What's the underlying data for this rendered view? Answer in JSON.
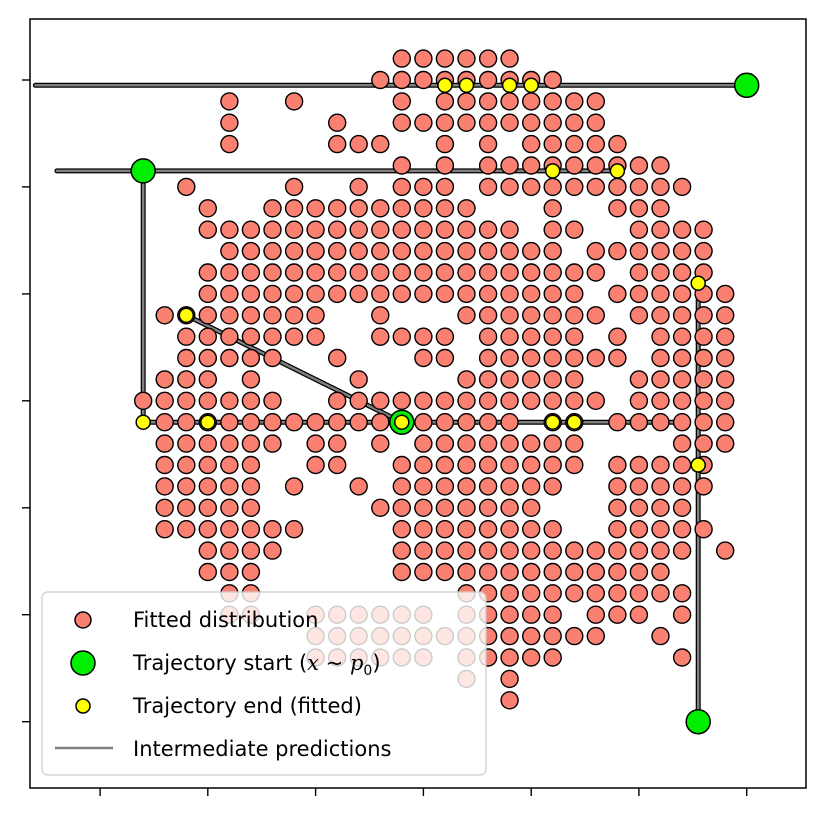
{
  "chart_data": {
    "type": "scatter",
    "title": "",
    "xlabel": "",
    "ylabel": "",
    "xlim": [
      -0.65,
      6.55
    ],
    "ylim": [
      -0.62,
      6.57
    ],
    "grid": false,
    "tick_labels_shown": false,
    "x_ticks": [
      0,
      1,
      2,
      3,
      4,
      5,
      6
    ],
    "y_ticks": [
      0,
      1,
      2,
      3,
      4,
      5,
      6
    ],
    "colors": {
      "fitted": "#fa8072",
      "start": "#00ee00",
      "end": "#ffff00",
      "path": "#808080",
      "edge": "#000000"
    },
    "legend": {
      "location": "lower-left",
      "entries": [
        {
          "key": "fitted",
          "label": "Fitted distribution"
        },
        {
          "key": "start",
          "label_prefix": "Trajectory start (",
          "label_math_x": "x",
          "label_math_sim": " ~ ",
          "label_math_p": "p",
          "label_math_sub": "0",
          "label_suffix": ")"
        },
        {
          "key": "end",
          "label": "Trajectory end (fitted)"
        },
        {
          "key": "path",
          "label": "Intermediate predictions"
        }
      ]
    },
    "grid_step": 0.2,
    "fitted_distribution_rows": [
      {
        "y": 6.2,
        "x": [
          [
            2.8,
            3.8
          ]
        ]
      },
      {
        "y": 6.0,
        "x": [
          [
            2.6,
            4.2
          ]
        ]
      },
      {
        "y": 5.8,
        "x": [
          [
            1.2,
            1.2
          ],
          [
            1.8,
            1.8
          ],
          [
            2.8,
            2.8
          ],
          [
            3.2,
            4.6
          ]
        ]
      },
      {
        "y": 5.6,
        "x": [
          [
            1.2,
            1.2
          ],
          [
            2.2,
            2.2
          ],
          [
            2.8,
            4.6
          ]
        ]
      },
      {
        "y": 5.4,
        "x": [
          [
            1.2,
            1.2
          ],
          [
            2.2,
            2.6
          ],
          [
            3.2,
            3.2
          ],
          [
            3.6,
            3.6
          ],
          [
            4.0,
            4.8
          ]
        ]
      },
      {
        "y": 5.2,
        "x": [
          [
            2.8,
            2.8
          ],
          [
            3.2,
            3.2
          ],
          [
            3.6,
            5.2
          ]
        ]
      },
      {
        "y": 5.0,
        "x": [
          [
            0.8,
            0.8
          ],
          [
            1.8,
            1.8
          ],
          [
            2.4,
            2.4
          ],
          [
            2.8,
            3.2
          ],
          [
            3.6,
            4.0
          ],
          [
            4.2,
            5.4
          ]
        ]
      },
      {
        "y": 4.8,
        "x": [
          [
            1.0,
            1.0
          ],
          [
            1.6,
            3.4
          ],
          [
            4.2,
            4.2
          ],
          [
            4.8,
            5.2
          ]
        ]
      },
      {
        "y": 4.6,
        "x": [
          [
            1.0,
            3.8
          ],
          [
            4.2,
            4.4
          ],
          [
            5.0,
            5.6
          ]
        ]
      },
      {
        "y": 4.4,
        "x": [
          [
            1.2,
            4.2
          ],
          [
            4.6,
            4.6
          ],
          [
            4.8,
            5.6
          ]
        ]
      },
      {
        "y": 4.2,
        "x": [
          [
            1.0,
            4.2
          ],
          [
            4.4,
            4.6
          ],
          [
            5.0,
            5.6
          ]
        ]
      },
      {
        "y": 4.0,
        "x": [
          [
            1.0,
            2.2
          ],
          [
            2.4,
            3.4
          ],
          [
            3.6,
            3.8
          ],
          [
            4.0,
            4.4
          ],
          [
            4.8,
            4.8
          ],
          [
            5.0,
            5.8
          ]
        ]
      },
      {
        "y": 3.8,
        "x": [
          [
            0.6,
            1.8
          ],
          [
            2.0,
            2.0
          ],
          [
            2.6,
            2.6
          ],
          [
            3.4,
            3.6
          ],
          [
            3.8,
            4.4
          ],
          [
            4.6,
            4.6
          ],
          [
            5.0,
            5.8
          ]
        ]
      },
      {
        "y": 3.6,
        "x": [
          [
            0.8,
            1.8
          ],
          [
            2.0,
            2.0
          ],
          [
            2.6,
            2.8
          ],
          [
            3.0,
            3.2
          ],
          [
            3.6,
            3.6
          ],
          [
            3.8,
            4.4
          ],
          [
            4.8,
            4.8
          ],
          [
            5.2,
            5.8
          ]
        ]
      },
      {
        "y": 3.4,
        "x": [
          [
            0.8,
            1.6
          ],
          [
            2.2,
            2.2
          ],
          [
            3.0,
            3.2
          ],
          [
            3.6,
            4.4
          ],
          [
            4.6,
            4.8
          ],
          [
            5.2,
            5.8
          ]
        ]
      },
      {
        "y": 3.2,
        "x": [
          [
            0.6,
            1.0
          ],
          [
            1.4,
            1.4
          ],
          [
            2.4,
            2.4
          ],
          [
            3.4,
            3.4
          ],
          [
            3.6,
            4.2
          ],
          [
            4.4,
            4.4
          ],
          [
            5.0,
            5.8
          ]
        ]
      },
      {
        "y": 3.0,
        "x": [
          [
            0.4,
            1.2
          ],
          [
            1.4,
            1.6
          ],
          [
            2.2,
            2.4
          ],
          [
            2.6,
            2.8
          ],
          [
            3.0,
            4.6
          ],
          [
            5.0,
            5.2
          ],
          [
            5.4,
            5.8
          ]
        ]
      },
      {
        "y": 2.8,
        "x": [
          [
            0.6,
            1.0
          ],
          [
            1.2,
            3.8
          ],
          [
            4.2,
            4.4
          ],
          [
            4.8,
            5.8
          ]
        ]
      },
      {
        "y": 2.6,
        "x": [
          [
            0.6,
            1.0
          ],
          [
            1.2,
            1.6
          ],
          [
            2.0,
            2.2
          ],
          [
            2.6,
            2.6
          ],
          [
            3.0,
            4.2
          ],
          [
            4.4,
            4.4
          ],
          [
            5.4,
            5.8
          ]
        ]
      },
      {
        "y": 2.4,
        "x": [
          [
            0.6,
            1.2
          ],
          [
            1.4,
            1.4
          ],
          [
            2.0,
            2.2
          ],
          [
            2.8,
            4.4
          ],
          [
            4.8,
            5.2
          ],
          [
            5.4,
            5.6
          ]
        ]
      },
      {
        "y": 2.2,
        "x": [
          [
            0.6,
            1.0
          ],
          [
            1.2,
            1.4
          ],
          [
            1.8,
            1.8
          ],
          [
            2.4,
            2.4
          ],
          [
            2.8,
            3.8
          ],
          [
            4.0,
            4.2
          ],
          [
            4.8,
            5.6
          ]
        ]
      },
      {
        "y": 2.0,
        "x": [
          [
            0.6,
            1.0
          ],
          [
            1.2,
            1.4
          ],
          [
            2.6,
            4.0
          ],
          [
            4.8,
            5.4
          ]
        ]
      },
      {
        "y": 1.8,
        "x": [
          [
            0.6,
            0.8
          ],
          [
            1.0,
            1.6
          ],
          [
            1.8,
            1.8
          ],
          [
            2.8,
            3.8
          ],
          [
            4.0,
            4.2
          ],
          [
            4.8,
            5.6
          ]
        ]
      },
      {
        "y": 1.6,
        "x": [
          [
            1.0,
            1.6
          ],
          [
            2.8,
            2.8
          ],
          [
            3.0,
            4.0
          ],
          [
            4.2,
            4.8
          ],
          [
            5.0,
            5.2
          ],
          [
            5.4,
            5.4
          ],
          [
            5.8,
            5.8
          ]
        ]
      },
      {
        "y": 1.4,
        "x": [
          [
            1.0,
            1.4
          ],
          [
            2.8,
            3.2
          ],
          [
            3.4,
            4.2
          ],
          [
            4.4,
            5.2
          ]
        ]
      },
      {
        "y": 1.2,
        "x": [
          [
            1.2,
            1.4
          ],
          [
            3.4,
            3.8
          ],
          [
            3.8,
            5.4
          ]
        ]
      },
      {
        "y": 1.0,
        "x": [
          [
            1.2,
            1.4
          ],
          [
            2.0,
            3.0
          ],
          [
            3.4,
            4.2
          ],
          [
            4.6,
            5.0
          ],
          [
            5.4,
            5.4
          ]
        ]
      },
      {
        "y": 0.8,
        "x": [
          [
            2.0,
            3.0
          ],
          [
            3.2,
            4.2
          ],
          [
            4.4,
            4.6
          ],
          [
            5.2,
            5.2
          ]
        ]
      },
      {
        "y": 0.6,
        "x": [
          [
            2.0,
            3.0
          ],
          [
            3.4,
            4.2
          ],
          [
            5.4,
            5.4
          ]
        ]
      },
      {
        "y": 0.4,
        "x": [
          [
            3.4,
            3.4
          ],
          [
            3.8,
            3.8
          ]
        ]
      },
      {
        "y": 0.2,
        "x": [
          [
            3.8,
            3.8
          ]
        ]
      }
    ],
    "trajectories": [
      {
        "start": [
          6.0,
          5.95
        ],
        "path": [
          [
            6.0,
            5.95
          ],
          [
            -0.6,
            5.95
          ]
        ],
        "end": [
          3.4,
          5.95
        ]
      },
      {
        "start": [
          0.4,
          5.15
        ],
        "path": [
          [
            0.4,
            5.15
          ],
          [
            -0.4,
            5.15
          ],
          [
            4.8,
            5.15
          ]
        ],
        "end": [
          4.8,
          5.15
        ]
      },
      {
        "start": [
          2.8,
          2.8
        ],
        "path": [
          [
            2.8,
            2.8
          ],
          [
            0.8,
            3.8
          ]
        ],
        "end": [
          0.8,
          3.8
        ]
      },
      {
        "start": [
          2.8,
          2.8
        ],
        "path": [
          [
            2.8,
            2.8
          ],
          [
            0.4,
            2.8
          ],
          [
            0.4,
            5.15
          ]
        ],
        "end": [
          0.4,
          2.8
        ]
      },
      {
        "start": [
          2.8,
          2.8
        ],
        "path": [
          [
            2.8,
            2.8
          ],
          [
            5.4,
            2.8
          ]
        ],
        "end": [
          4.2,
          2.8
        ]
      },
      {
        "start": [
          5.55,
          0.0
        ],
        "path": [
          [
            5.55,
            0.0
          ],
          [
            5.55,
            4.1
          ]
        ],
        "end": [
          5.55,
          4.1
        ]
      }
    ],
    "trajectory_ends": [
      [
        3.2,
        5.95
      ],
      [
        3.4,
        5.95
      ],
      [
        3.8,
        5.95
      ],
      [
        4.0,
        5.95
      ],
      [
        4.2,
        5.15
      ],
      [
        4.8,
        5.15
      ],
      [
        0.8,
        3.8
      ],
      [
        0.4,
        2.8
      ],
      [
        1.0,
        2.8
      ],
      [
        2.8,
        2.8
      ],
      [
        4.2,
        2.8
      ],
      [
        4.4,
        2.8
      ],
      [
        5.55,
        4.1
      ],
      [
        5.55,
        2.4
      ]
    ],
    "trajectory_starts": [
      [
        6.0,
        5.95
      ],
      [
        0.4,
        5.15
      ],
      [
        2.8,
        2.8
      ],
      [
        5.55,
        0.0
      ]
    ]
  }
}
